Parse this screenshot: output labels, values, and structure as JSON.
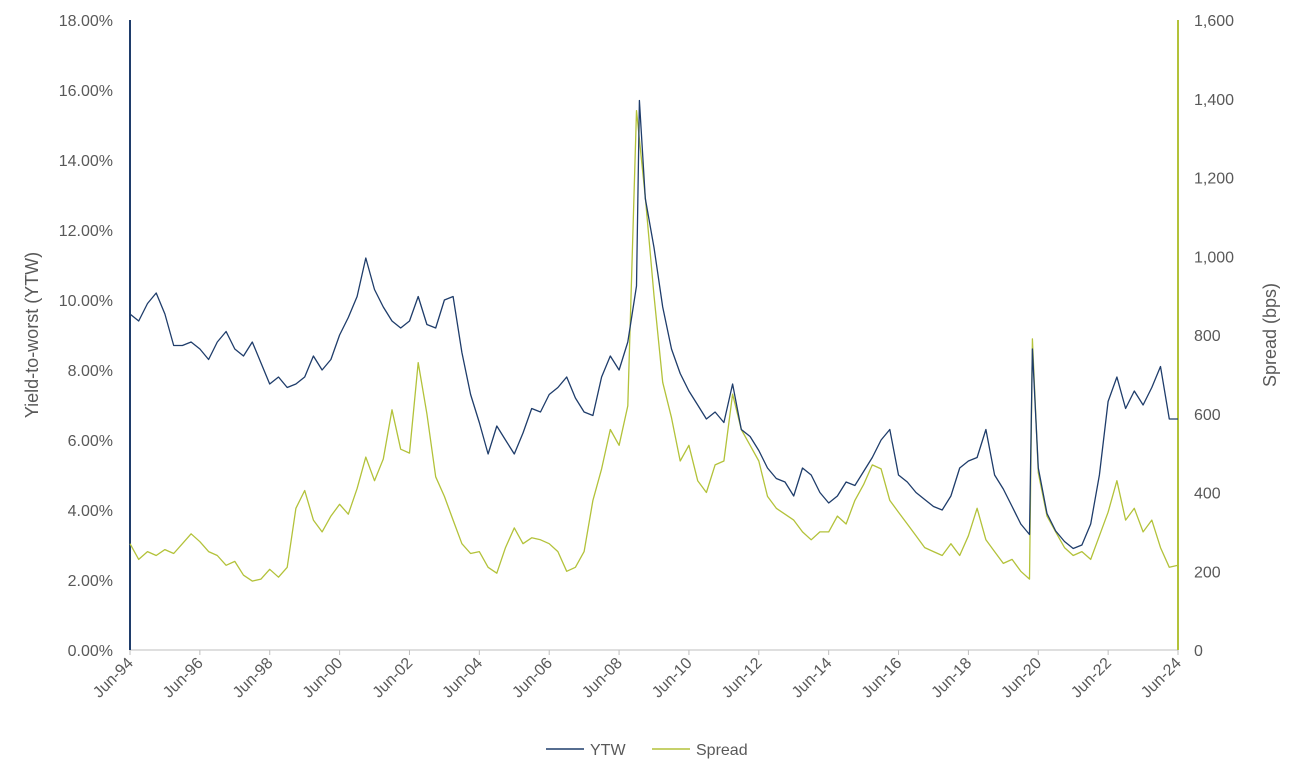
{
  "chart_data": {
    "type": "line",
    "title": "",
    "xlabel": "",
    "ylabel": "Yield-to-worst (YTW)",
    "y2label": "Spread (bps)",
    "xlim": [
      "Jun-94",
      "Jun-24"
    ],
    "ylim": [
      0,
      18
    ],
    "y2lim": [
      0,
      1600
    ],
    "x_tick_labels": [
      "Jun-94",
      "Jun-96",
      "Jun-98",
      "Jun-00",
      "Jun-02",
      "Jun-04",
      "Jun-06",
      "Jun-08",
      "Jun-10",
      "Jun-12",
      "Jun-14",
      "Jun-16",
      "Jun-18",
      "Jun-20",
      "Jun-22",
      "Jun-24"
    ],
    "y_tick_labels": [
      "0.00%",
      "2.00%",
      "4.00%",
      "6.00%",
      "8.00%",
      "10.00%",
      "12.00%",
      "14.00%",
      "16.00%",
      "18.00%"
    ],
    "y2_tick_labels": [
      "0",
      "200",
      "400",
      "600",
      "800",
      "1,000",
      "1,200",
      "1,400",
      "1,600"
    ],
    "grid": false,
    "legend_position": "bottom-center",
    "series": [
      {
        "name": "YTW",
        "axis": "left",
        "unit": "%",
        "color": "#1f3d6b",
        "points": [
          [
            "1994-06",
            9.6
          ],
          [
            "1994-09",
            9.4
          ],
          [
            "1994-12",
            9.9
          ],
          [
            "1995-03",
            10.2
          ],
          [
            "1995-06",
            9.6
          ],
          [
            "1995-09",
            8.7
          ],
          [
            "1995-12",
            8.7
          ],
          [
            "1996-03",
            8.8
          ],
          [
            "1996-06",
            8.6
          ],
          [
            "1996-09",
            8.3
          ],
          [
            "1996-12",
            8.8
          ],
          [
            "1997-03",
            9.1
          ],
          [
            "1997-06",
            8.6
          ],
          [
            "1997-09",
            8.4
          ],
          [
            "1997-12",
            8.8
          ],
          [
            "1998-03",
            8.2
          ],
          [
            "1998-06",
            7.6
          ],
          [
            "1998-09",
            7.8
          ],
          [
            "1998-12",
            7.5
          ],
          [
            "1999-03",
            7.6
          ],
          [
            "1999-06",
            7.8
          ],
          [
            "1999-09",
            8.4
          ],
          [
            "1999-12",
            8.0
          ],
          [
            "2000-03",
            8.3
          ],
          [
            "2000-06",
            9.0
          ],
          [
            "2000-09",
            9.5
          ],
          [
            "2000-12",
            10.1
          ],
          [
            "2001-03",
            11.2
          ],
          [
            "2001-06",
            10.3
          ],
          [
            "2001-09",
            9.8
          ],
          [
            "2001-12",
            9.4
          ],
          [
            "2002-03",
            9.2
          ],
          [
            "2002-06",
            9.4
          ],
          [
            "2002-09",
            10.1
          ],
          [
            "2002-12",
            9.3
          ],
          [
            "2003-03",
            9.2
          ],
          [
            "2003-06",
            10.0
          ],
          [
            "2003-09",
            10.1
          ],
          [
            "2003-12",
            8.5
          ],
          [
            "2004-03",
            7.3
          ],
          [
            "2004-06",
            6.5
          ],
          [
            "2004-09",
            5.6
          ],
          [
            "2004-12",
            6.4
          ],
          [
            "2005-03",
            6.0
          ],
          [
            "2005-06",
            5.6
          ],
          [
            "2005-09",
            6.2
          ],
          [
            "2005-12",
            6.9
          ],
          [
            "2006-03",
            6.8
          ],
          [
            "2006-06",
            7.3
          ],
          [
            "2006-09",
            7.5
          ],
          [
            "2006-12",
            7.8
          ],
          [
            "2007-03",
            7.2
          ],
          [
            "2007-06",
            6.8
          ],
          [
            "2007-09",
            6.7
          ],
          [
            "2007-12",
            7.8
          ],
          [
            "2008-03",
            8.4
          ],
          [
            "2008-06",
            8.0
          ],
          [
            "2008-09",
            8.8
          ],
          [
            "2008-12",
            10.4
          ],
          [
            "2009-01",
            15.7
          ],
          [
            "2009-03",
            12.9
          ],
          [
            "2009-06",
            11.5
          ],
          [
            "2009-09",
            9.8
          ],
          [
            "2009-12",
            8.6
          ],
          [
            "2010-03",
            7.9
          ],
          [
            "2010-06",
            7.4
          ],
          [
            "2010-09",
            7.0
          ],
          [
            "2010-12",
            6.6
          ],
          [
            "2011-03",
            6.8
          ],
          [
            "2011-06",
            6.5
          ],
          [
            "2011-09",
            7.6
          ],
          [
            "2011-12",
            6.3
          ],
          [
            "2012-03",
            6.1
          ],
          [
            "2012-06",
            5.7
          ],
          [
            "2012-09",
            5.2
          ],
          [
            "2012-12",
            4.9
          ],
          [
            "2013-03",
            4.8
          ],
          [
            "2013-06",
            4.4
          ],
          [
            "2013-09",
            5.2
          ],
          [
            "2013-12",
            5.0
          ],
          [
            "2014-03",
            4.5
          ],
          [
            "2014-06",
            4.2
          ],
          [
            "2014-09",
            4.4
          ],
          [
            "2014-12",
            4.8
          ],
          [
            "2015-03",
            4.7
          ],
          [
            "2015-06",
            5.1
          ],
          [
            "2015-09",
            5.5
          ],
          [
            "2015-12",
            6.0
          ],
          [
            "2016-03",
            6.3
          ],
          [
            "2016-06",
            5.0
          ],
          [
            "2016-09",
            4.8
          ],
          [
            "2016-12",
            4.5
          ],
          [
            "2017-03",
            4.3
          ],
          [
            "2017-06",
            4.1
          ],
          [
            "2017-09",
            4.0
          ],
          [
            "2017-12",
            4.4
          ],
          [
            "2018-03",
            5.2
          ],
          [
            "2018-06",
            5.4
          ],
          [
            "2018-09",
            5.5
          ],
          [
            "2018-12",
            6.3
          ],
          [
            "2019-03",
            5.0
          ],
          [
            "2019-06",
            4.6
          ],
          [
            "2019-09",
            4.1
          ],
          [
            "2019-12",
            3.6
          ],
          [
            "2020-03",
            3.3
          ],
          [
            "2020-04",
            8.6
          ],
          [
            "2020-06",
            5.2
          ],
          [
            "2020-09",
            3.9
          ],
          [
            "2020-12",
            3.4
          ],
          [
            "2021-03",
            3.1
          ],
          [
            "2021-06",
            2.9
          ],
          [
            "2021-09",
            3.0
          ],
          [
            "2021-12",
            3.6
          ],
          [
            "2022-03",
            5.0
          ],
          [
            "2022-06",
            7.1
          ],
          [
            "2022-09",
            7.8
          ],
          [
            "2022-12",
            6.9
          ],
          [
            "2023-03",
            7.4
          ],
          [
            "2023-06",
            7.0
          ],
          [
            "2023-09",
            7.5
          ],
          [
            "2023-12",
            8.1
          ],
          [
            "2024-03",
            6.6
          ],
          [
            "2024-06",
            6.6
          ]
        ]
      },
      {
        "name": "Spread",
        "axis": "right",
        "unit": "bps",
        "color": "#b3c23a",
        "points": [
          [
            "1994-06",
            270
          ],
          [
            "1994-09",
            230
          ],
          [
            "1994-12",
            250
          ],
          [
            "1995-03",
            240
          ],
          [
            "1995-06",
            255
          ],
          [
            "1995-09",
            245
          ],
          [
            "1995-12",
            270
          ],
          [
            "1996-03",
            295
          ],
          [
            "1996-06",
            275
          ],
          [
            "1996-09",
            250
          ],
          [
            "1996-12",
            240
          ],
          [
            "1997-03",
            215
          ],
          [
            "1997-06",
            225
          ],
          [
            "1997-09",
            190
          ],
          [
            "1997-12",
            175
          ],
          [
            "1998-03",
            180
          ],
          [
            "1998-06",
            205
          ],
          [
            "1998-09",
            185
          ],
          [
            "1998-12",
            210
          ],
          [
            "1999-03",
            360
          ],
          [
            "1999-06",
            405
          ],
          [
            "1999-09",
            330
          ],
          [
            "1999-12",
            300
          ],
          [
            "2000-03",
            340
          ],
          [
            "2000-06",
            370
          ],
          [
            "2000-09",
            345
          ],
          [
            "2000-12",
            410
          ],
          [
            "2001-03",
            490
          ],
          [
            "2001-06",
            430
          ],
          [
            "2001-09",
            485
          ],
          [
            "2001-12",
            610
          ],
          [
            "2002-03",
            510
          ],
          [
            "2002-06",
            500
          ],
          [
            "2002-09",
            730
          ],
          [
            "2002-12",
            600
          ],
          [
            "2003-03",
            440
          ],
          [
            "2003-06",
            390
          ],
          [
            "2003-09",
            330
          ],
          [
            "2003-12",
            270
          ],
          [
            "2004-03",
            245
          ],
          [
            "2004-06",
            250
          ],
          [
            "2004-09",
            210
          ],
          [
            "2004-12",
            195
          ],
          [
            "2005-03",
            260
          ],
          [
            "2005-06",
            310
          ],
          [
            "2005-09",
            270
          ],
          [
            "2005-12",
            285
          ],
          [
            "2006-03",
            280
          ],
          [
            "2006-06",
            270
          ],
          [
            "2006-09",
            250
          ],
          [
            "2006-12",
            200
          ],
          [
            "2007-03",
            210
          ],
          [
            "2007-06",
            250
          ],
          [
            "2007-09",
            380
          ],
          [
            "2007-12",
            460
          ],
          [
            "2008-03",
            560
          ],
          [
            "2008-06",
            520
          ],
          [
            "2008-09",
            620
          ],
          [
            "2008-12",
            1370
          ],
          [
            "2009-03",
            1150
          ],
          [
            "2009-06",
            900
          ],
          [
            "2009-09",
            680
          ],
          [
            "2009-12",
            590
          ],
          [
            "2010-03",
            480
          ],
          [
            "2010-06",
            520
          ],
          [
            "2010-09",
            430
          ],
          [
            "2010-12",
            400
          ],
          [
            "2011-03",
            470
          ],
          [
            "2011-06",
            480
          ],
          [
            "2011-09",
            650
          ],
          [
            "2011-12",
            560
          ],
          [
            "2012-03",
            520
          ],
          [
            "2012-06",
            480
          ],
          [
            "2012-09",
            390
          ],
          [
            "2012-12",
            360
          ],
          [
            "2013-03",
            345
          ],
          [
            "2013-06",
            330
          ],
          [
            "2013-09",
            300
          ],
          [
            "2013-12",
            280
          ],
          [
            "2014-03",
            300
          ],
          [
            "2014-06",
            300
          ],
          [
            "2014-09",
            340
          ],
          [
            "2014-12",
            320
          ],
          [
            "2015-03",
            380
          ],
          [
            "2015-06",
            420
          ],
          [
            "2015-09",
            470
          ],
          [
            "2015-12",
            460
          ],
          [
            "2016-03",
            380
          ],
          [
            "2016-06",
            350
          ],
          [
            "2016-09",
            320
          ],
          [
            "2016-12",
            290
          ],
          [
            "2017-03",
            260
          ],
          [
            "2017-06",
            250
          ],
          [
            "2017-09",
            240
          ],
          [
            "2017-12",
            270
          ],
          [
            "2018-03",
            240
          ],
          [
            "2018-06",
            290
          ],
          [
            "2018-09",
            360
          ],
          [
            "2018-12",
            280
          ],
          [
            "2019-03",
            250
          ],
          [
            "2019-06",
            220
          ],
          [
            "2019-09",
            230
          ],
          [
            "2019-12",
            200
          ],
          [
            "2020-03",
            180
          ],
          [
            "2020-04",
            790
          ],
          [
            "2020-06",
            450
          ],
          [
            "2020-09",
            340
          ],
          [
            "2020-12",
            300
          ],
          [
            "2021-03",
            260
          ],
          [
            "2021-06",
            240
          ],
          [
            "2021-09",
            250
          ],
          [
            "2021-12",
            230
          ],
          [
            "2022-03",
            290
          ],
          [
            "2022-06",
            350
          ],
          [
            "2022-09",
            430
          ],
          [
            "2022-12",
            330
          ],
          [
            "2023-03",
            360
          ],
          [
            "2023-06",
            300
          ],
          [
            "2023-09",
            330
          ],
          [
            "2023-12",
            260
          ],
          [
            "2024-03",
            210
          ],
          [
            "2024-06",
            215
          ]
        ]
      }
    ]
  }
}
